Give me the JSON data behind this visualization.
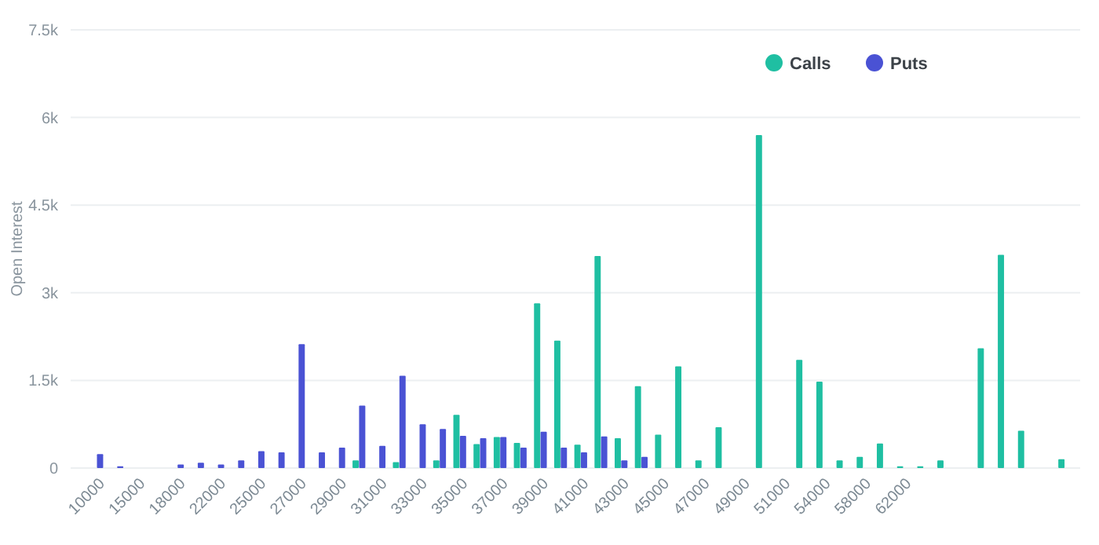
{
  "chart_data": {
    "type": "bar",
    "ylabel": "Open Interest",
    "categories": [
      "10000",
      null,
      "15000",
      null,
      "18000",
      null,
      "22000",
      null,
      "25000",
      null,
      "27000",
      null,
      "29000",
      null,
      "31000",
      null,
      "33000",
      null,
      "35000",
      null,
      "37000",
      null,
      "39000",
      null,
      "41000",
      null,
      "43000",
      null,
      "45000",
      null,
      "47000",
      null,
      "49000",
      null,
      "51000",
      null,
      "54000",
      null,
      "58000",
      null,
      "62000",
      null,
      null,
      null,
      null,
      null,
      null,
      null,
      null
    ],
    "series": [
      {
        "name": "Calls",
        "color": "#1fbfa2",
        "values": [
          null,
          null,
          null,
          null,
          null,
          null,
          null,
          null,
          null,
          null,
          null,
          null,
          null,
          130,
          null,
          100,
          null,
          130,
          910,
          410,
          530,
          430,
          2820,
          2180,
          400,
          3630,
          510,
          1400,
          570,
          1740,
          130,
          700,
          null,
          5700,
          null,
          1850,
          1480,
          130,
          190,
          420,
          30,
          30,
          130,
          null,
          2050,
          3650,
          640,
          null,
          150
        ]
      },
      {
        "name": "Puts",
        "color": "#4a52d4",
        "values": [
          240,
          30,
          null,
          null,
          60,
          90,
          60,
          130,
          290,
          270,
          2120,
          270,
          350,
          1070,
          380,
          1580,
          750,
          670,
          550,
          510,
          530,
          350,
          620,
          350,
          270,
          540,
          130,
          190,
          null,
          null,
          null,
          null,
          null,
          null,
          null,
          null,
          null,
          null,
          null,
          null,
          null,
          null,
          null,
          null,
          null,
          null,
          null,
          null,
          null
        ]
      }
    ],
    "ylim": [
      0,
      7500
    ],
    "yticks": [
      0,
      {
        "value": 1500,
        "label": "1.5k"
      },
      {
        "value": 3000,
        "label": "3k"
      },
      {
        "value": 4500,
        "label": "4.5k"
      },
      {
        "value": 6000,
        "label": "6k"
      },
      {
        "value": 7500,
        "label": "7.5k"
      }
    ],
    "grid": "y",
    "legend": "top right"
  }
}
